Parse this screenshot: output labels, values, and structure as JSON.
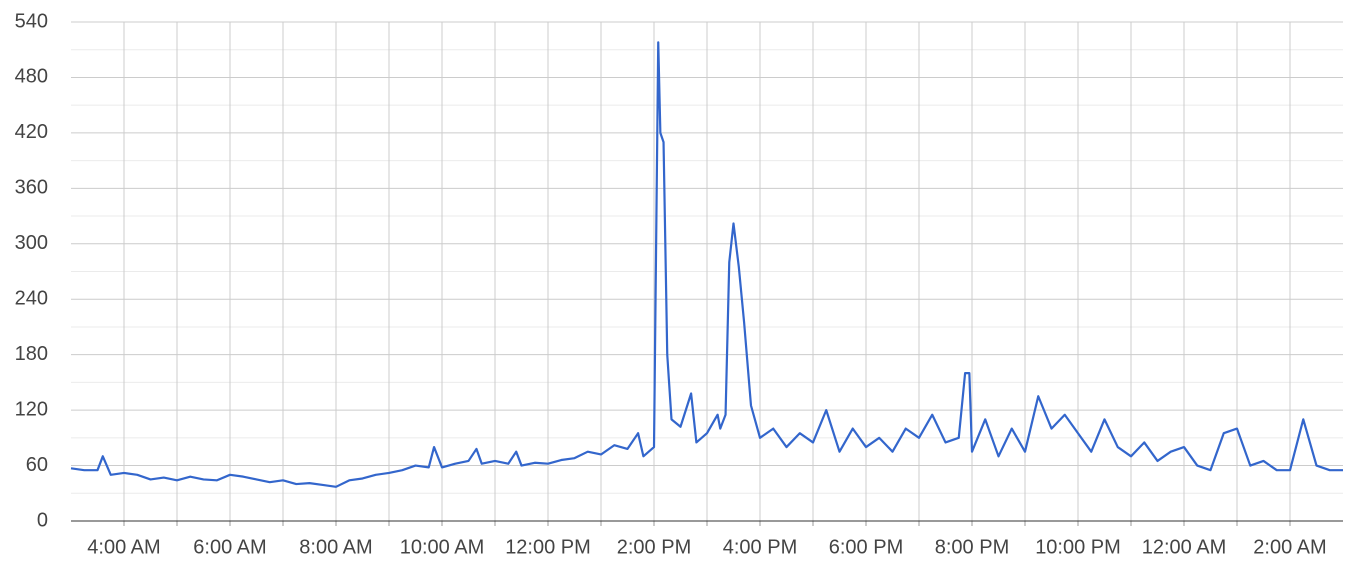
{
  "chart_data": {
    "type": "line",
    "x": [
      3.0,
      3.25,
      3.5,
      3.6,
      3.75,
      4.0,
      4.25,
      4.5,
      4.75,
      5.0,
      5.25,
      5.5,
      5.75,
      6.0,
      6.25,
      6.5,
      6.75,
      7.0,
      7.25,
      7.5,
      7.75,
      8.0,
      8.25,
      8.5,
      8.75,
      9.0,
      9.25,
      9.5,
      9.75,
      9.85,
      10.0,
      10.25,
      10.5,
      10.65,
      10.75,
      11.0,
      11.25,
      11.4,
      11.5,
      11.75,
      12.0,
      12.25,
      12.5,
      12.75,
      13.0,
      13.25,
      13.5,
      13.7,
      13.8,
      14.0,
      14.08,
      14.12,
      14.18,
      14.25,
      14.33,
      14.5,
      14.7,
      14.8,
      15.0,
      15.2,
      15.25,
      15.35,
      15.42,
      15.5,
      15.6,
      15.7,
      15.83,
      16.0,
      16.25,
      16.5,
      16.75,
      17.0,
      17.25,
      17.5,
      17.75,
      18.0,
      18.25,
      18.5,
      18.75,
      19.0,
      19.25,
      19.5,
      19.75,
      19.87,
      19.95,
      20.0,
      20.25,
      20.5,
      20.75,
      21.0,
      21.25,
      21.5,
      21.75,
      22.0,
      22.25,
      22.5,
      22.75,
      23.0,
      23.25,
      23.5,
      23.75,
      24.0,
      24.25,
      24.5,
      24.75,
      25.0,
      25.25,
      25.5,
      25.75,
      26.0,
      26.25,
      26.5,
      26.75,
      27.0
    ],
    "series": [
      {
        "color": "#3366cc",
        "values": [
          57,
          55,
          55,
          70,
          50,
          52,
          50,
          45,
          47,
          44,
          48,
          45,
          44,
          50,
          48,
          45,
          42,
          44,
          40,
          41,
          39,
          37,
          44,
          46,
          50,
          52,
          55,
          60,
          58,
          80,
          58,
          62,
          65,
          78,
          62,
          65,
          62,
          75,
          60,
          63,
          62,
          66,
          68,
          75,
          72,
          82,
          78,
          95,
          70,
          80,
          518,
          420,
          410,
          180,
          110,
          102,
          138,
          85,
          95,
          115,
          100,
          115,
          280,
          322,
          275,
          215,
          125,
          90,
          100,
          80,
          95,
          85,
          120,
          75,
          100,
          80,
          90,
          75,
          100,
          90,
          115,
          85,
          90,
          160,
          160,
          75,
          110,
          70,
          100,
          75,
          135,
          100,
          115,
          95,
          75,
          110,
          80,
          70,
          85,
          65,
          75,
          80,
          60,
          55,
          95,
          100,
          60,
          65,
          55,
          55,
          110,
          60,
          55,
          55
        ]
      }
    ],
    "xlim": [
      3,
      27
    ],
    "xticks": [
      {
        "value": 4,
        "label": "4:00 AM"
      },
      {
        "value": 6,
        "label": "6:00 AM"
      },
      {
        "value": 8,
        "label": "8:00 AM"
      },
      {
        "value": 10,
        "label": "10:00 AM"
      },
      {
        "value": 12,
        "label": "12:00 PM"
      },
      {
        "value": 14,
        "label": "2:00 PM"
      },
      {
        "value": 16,
        "label": "4:00 PM"
      },
      {
        "value": 18,
        "label": "6:00 PM"
      },
      {
        "value": 20,
        "label": "8:00 PM"
      },
      {
        "value": 22,
        "label": "10:00 PM"
      },
      {
        "value": 24,
        "label": "12:00 AM"
      },
      {
        "value": 26,
        "label": "2:00 AM"
      }
    ],
    "xminorticks": [
      5,
      7,
      9,
      11,
      13,
      15,
      17,
      19,
      21,
      23,
      25
    ],
    "ylim": [
      0,
      540
    ],
    "yticks": [
      0,
      60,
      120,
      180,
      240,
      300,
      360,
      420,
      480,
      540
    ],
    "yminorticks": [
      30,
      90,
      150,
      210,
      270,
      330,
      390,
      450,
      510
    ],
    "grid": true
  }
}
